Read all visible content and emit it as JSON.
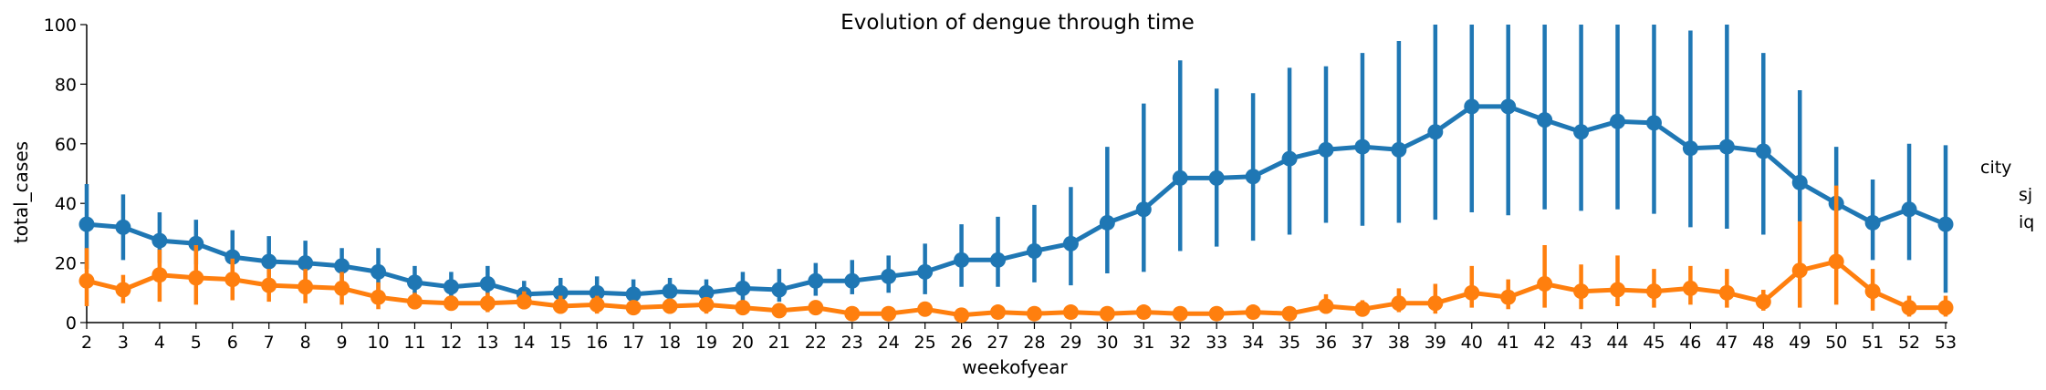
{
  "chart_data": {
    "type": "line",
    "title": "Evolution of dengue through time",
    "xlabel": "weekofyear",
    "ylabel": "total_cases",
    "ylim": [
      0,
      100
    ],
    "yticks": [
      0,
      20,
      40,
      60,
      80,
      100
    ],
    "categories": [
      "2",
      "3",
      "4",
      "5",
      "6",
      "7",
      "8",
      "9",
      "10",
      "11",
      "12",
      "13",
      "14",
      "15",
      "16",
      "17",
      "18",
      "19",
      "20",
      "21",
      "22",
      "23",
      "24",
      "25",
      "26",
      "27",
      "28",
      "29",
      "30",
      "31",
      "32",
      "33",
      "34",
      "35",
      "36",
      "37",
      "38",
      "39",
      "40",
      "41",
      "42",
      "43",
      "44",
      "45",
      "46",
      "47",
      "48",
      "49",
      "50",
      "51",
      "52",
      "53"
    ],
    "legend": {
      "title": "city",
      "placement": "right"
    },
    "grid": false,
    "series": [
      {
        "name": "sj",
        "color": "#1f77b4",
        "values": [
          33,
          32,
          27.5,
          26.5,
          22,
          20.5,
          20,
          19,
          17,
          13.5,
          12,
          13,
          9.5,
          10,
          10,
          9.5,
          10.5,
          10,
          11.5,
          11,
          14,
          14,
          15.5,
          17,
          21,
          21,
          24,
          26.5,
          33.5,
          38,
          48.5,
          48.5,
          49,
          55,
          58,
          59,
          58,
          64,
          72.5,
          72.5,
          68,
          64,
          67.5,
          67,
          58.5,
          59,
          57.5,
          47,
          40,
          33.5,
          38,
          33
        ],
        "ci_low": [
          18,
          21,
          20,
          19.5,
          15,
          15,
          14,
          14,
          10,
          9,
          7,
          8,
          6,
          6,
          6,
          5.5,
          7,
          6.5,
          7,
          7,
          9,
          9.5,
          10,
          9.5,
          12,
          12,
          13.5,
          12.5,
          16.5,
          17,
          24,
          25.5,
          27.5,
          29.5,
          33.5,
          32.5,
          33.5,
          34.5,
          37,
          36,
          38,
          37.5,
          38,
          36.5,
          32,
          31.5,
          29.5,
          20.5,
          21,
          21,
          21,
          10
        ],
        "ci_high": [
          46.5,
          43,
          37,
          34.5,
          31,
          29,
          27.5,
          25,
          25,
          19,
          17,
          19,
          14,
          15,
          15.5,
          14.5,
          15,
          14.5,
          17,
          18,
          20,
          21,
          22.5,
          26.5,
          33,
          35.5,
          39.5,
          45.5,
          59,
          73.5,
          88,
          78.5,
          77,
          85.5,
          86,
          90.5,
          94.5,
          101,
          101,
          101,
          101,
          101,
          101,
          101,
          98,
          101,
          90.5,
          78,
          59,
          48,
          60,
          59.5
        ]
      },
      {
        "name": "iq",
        "color": "#ff7f0e",
        "values": [
          14,
          11,
          16,
          15,
          14.5,
          12.5,
          12,
          11.5,
          8.5,
          7,
          6.5,
          6.5,
          7,
          5.5,
          6,
          5,
          5.5,
          6,
          5,
          4,
          5,
          3,
          3,
          4.5,
          2.5,
          3.5,
          3,
          3.5,
          3,
          3.5,
          3,
          3,
          3.5,
          3,
          5.5,
          4.5,
          6.5,
          6.5,
          10,
          8.5,
          13,
          10.5,
          11,
          10.5,
          11.5,
          10,
          7,
          17.5,
          20.5,
          10.5,
          5,
          5
        ],
        "ci_low": [
          5.5,
          6.5,
          7,
          6,
          7.5,
          7,
          6.5,
          6,
          4.5,
          4.5,
          4,
          3.5,
          4.5,
          3,
          3,
          3,
          3,
          3,
          3,
          2,
          3.5,
          1.5,
          1.5,
          2,
          1,
          2,
          2,
          2,
          2,
          2,
          2,
          2,
          2,
          1.5,
          3,
          2,
          3.5,
          3,
          5,
          4.5,
          5,
          4.5,
          5.5,
          5,
          6,
          5,
          4,
          5,
          6,
          4,
          2,
          2
        ],
        "ci_high": [
          25,
          16,
          24.5,
          26,
          21.5,
          18,
          18,
          17,
          13.5,
          10,
          9,
          10,
          10.5,
          9,
          9,
          7,
          8,
          8.5,
          7.5,
          6,
          7,
          4.5,
          4.5,
          7,
          4,
          5,
          4.5,
          5,
          4.5,
          5,
          4.5,
          4.5,
          5,
          4.5,
          9.5,
          7.5,
          11.5,
          13,
          19,
          14.5,
          26,
          19.5,
          22.5,
          18,
          19,
          18,
          11,
          34,
          46,
          18,
          9,
          9
        ]
      }
    ]
  }
}
